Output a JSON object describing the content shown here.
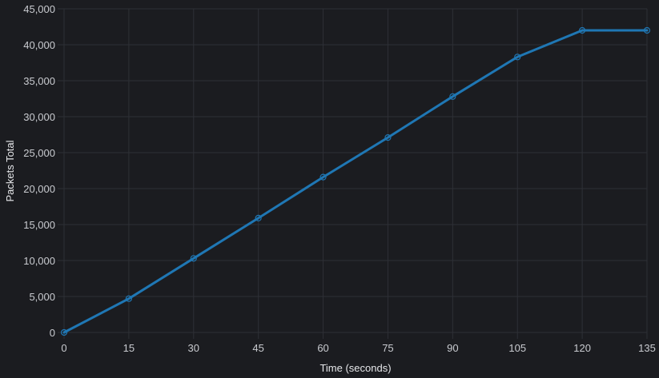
{
  "chart_data": {
    "type": "line",
    "title": "",
    "xlabel": "Time (seconds)",
    "ylabel": "Packets Total",
    "xlim": [
      0,
      135
    ],
    "ylim": [
      0,
      45000
    ],
    "x_ticks": [
      0,
      15,
      30,
      45,
      60,
      75,
      90,
      105,
      120,
      135
    ],
    "y_ticks": [
      0,
      5000,
      10000,
      15000,
      20000,
      25000,
      30000,
      35000,
      40000,
      45000
    ],
    "grid": true,
    "legend": "none",
    "series": [
      {
        "color": "#1f77b4",
        "x": [
          0,
          15,
          30,
          45,
          60,
          75,
          90,
          105,
          120,
          135
        ],
        "values": [
          0,
          4700,
          10300,
          15900,
          21600,
          27100,
          32800,
          38300,
          42000,
          42000
        ]
      }
    ]
  }
}
